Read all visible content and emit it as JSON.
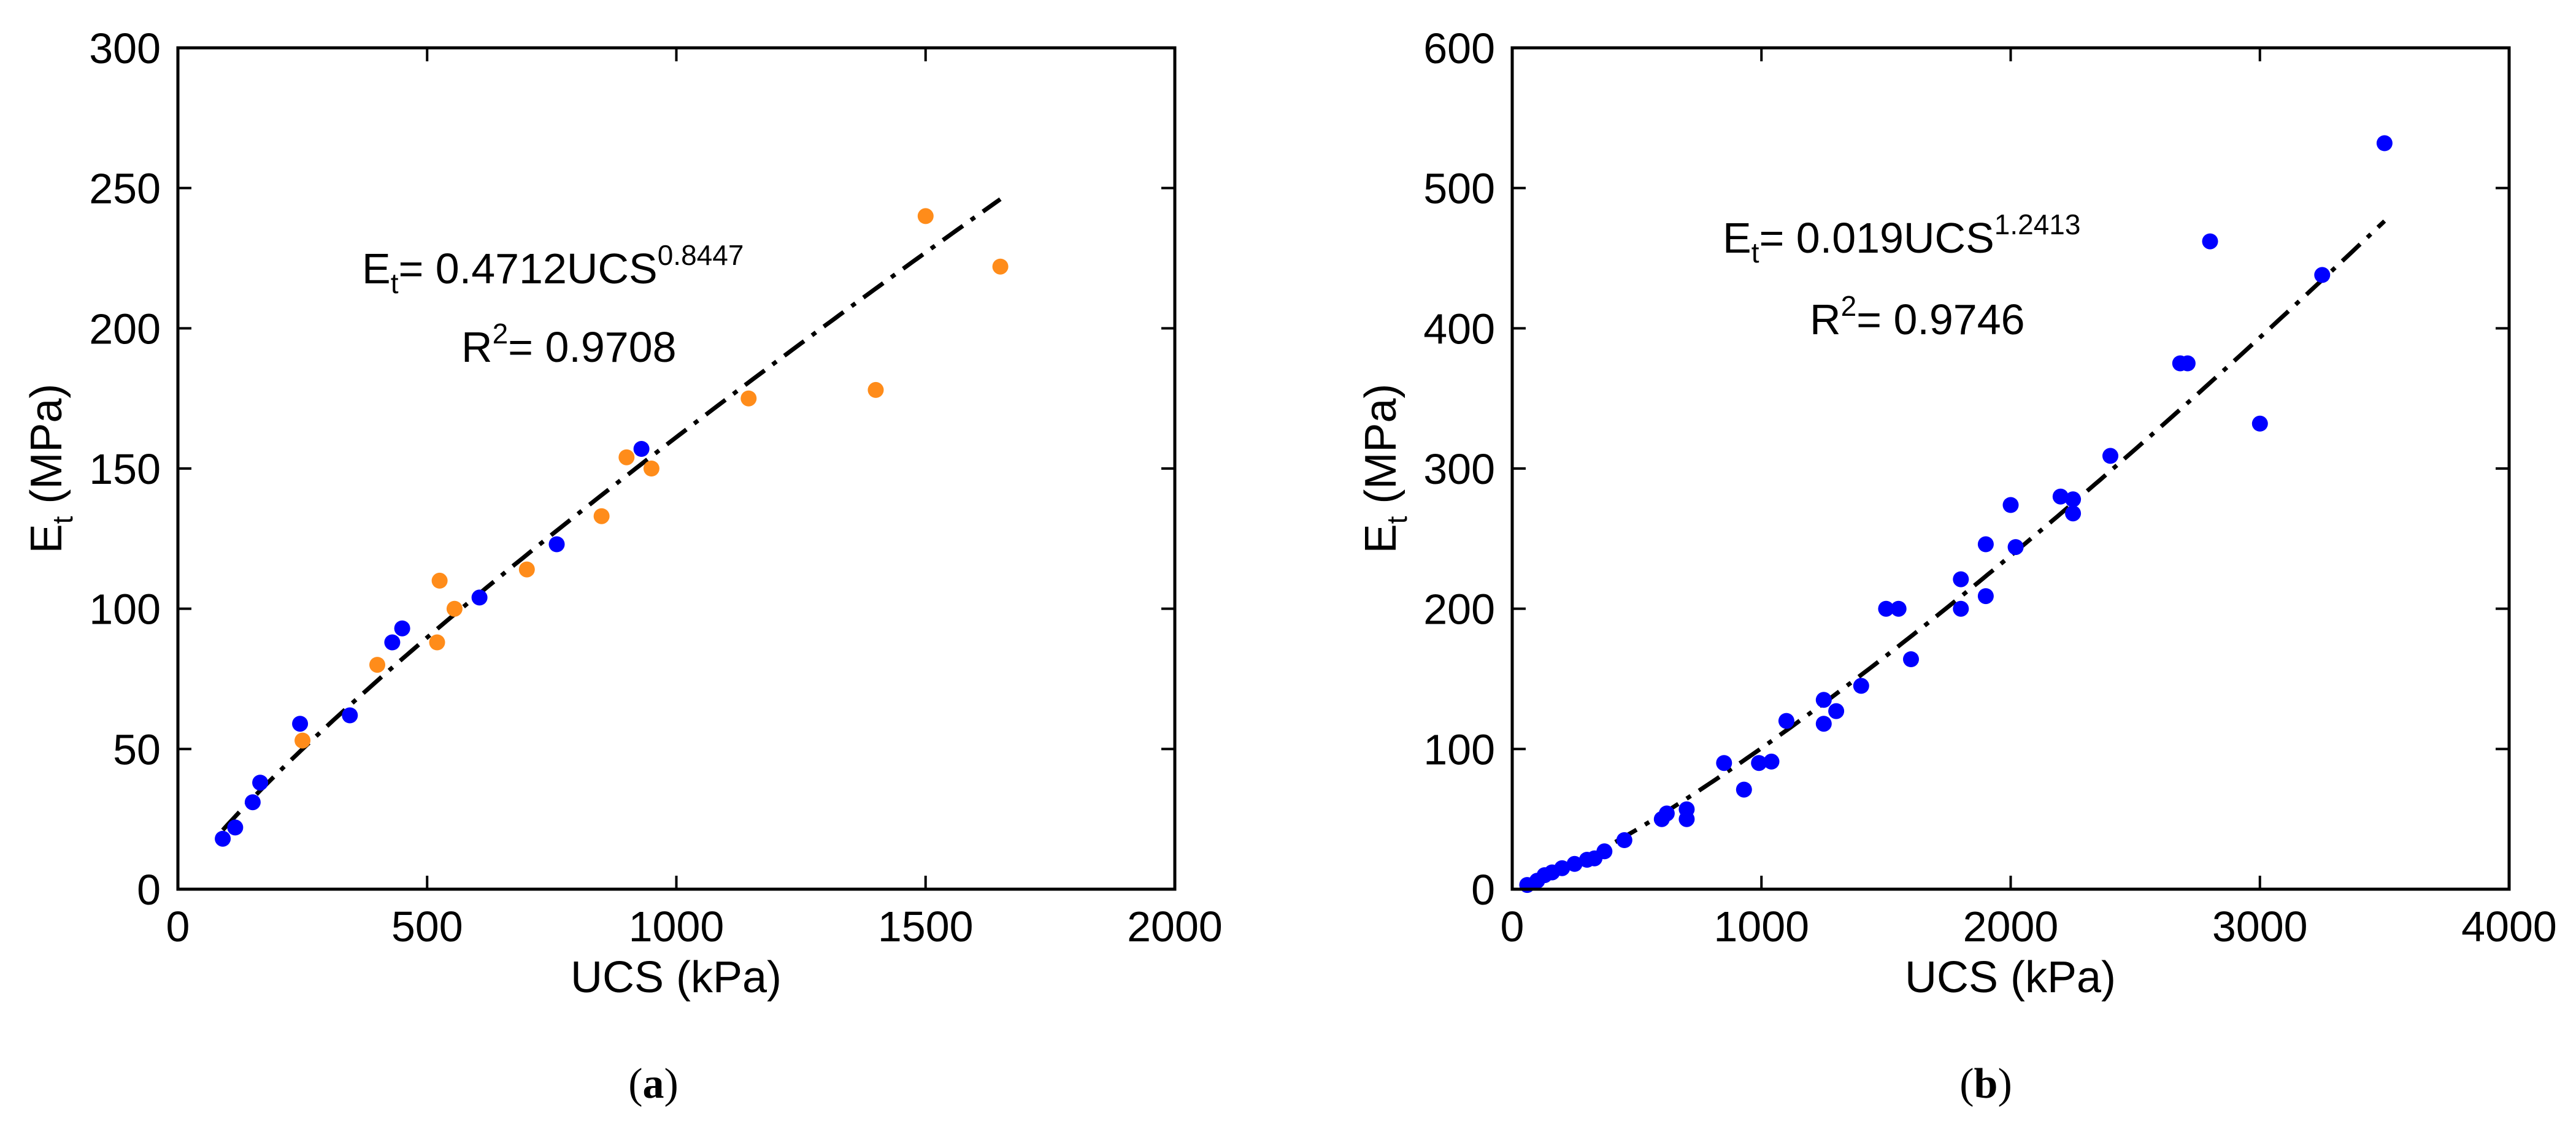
{
  "chart_data": [
    {
      "type": "scatter",
      "panel": "a",
      "caption_open": "(",
      "caption_letter": "a",
      "caption_close": ")",
      "xlabel": "UCS (kPa)",
      "ylabel": {
        "main": "E",
        "sub": "t",
        "rest": " (MPa)"
      },
      "xlim": [
        0,
        2000
      ],
      "ylim": [
        0,
        300
      ],
      "xticks": [
        0,
        500,
        1000,
        1500,
        2000
      ],
      "yticks": [
        0,
        50,
        100,
        150,
        200,
        250,
        300
      ],
      "grid": false,
      "series": [
        {
          "name": "blue",
          "color": "#0000ff",
          "points": [
            [
              90,
              18
            ],
            [
              115,
              22
            ],
            [
              150,
              31
            ],
            [
              165,
              38
            ],
            [
              245,
              59
            ],
            [
              345,
              62
            ],
            [
              430,
              88
            ],
            [
              450,
              93
            ],
            [
              605,
              104
            ],
            [
              760,
              123
            ],
            [
              930,
              157
            ]
          ]
        },
        {
          "name": "orange",
          "color": "#ff8c1a",
          "points": [
            [
              250,
              53
            ],
            [
              400,
              80
            ],
            [
              520,
              88
            ],
            [
              525,
              110
            ],
            [
              555,
              100
            ],
            [
              700,
              114
            ],
            [
              850,
              133
            ],
            [
              900,
              154
            ],
            [
              950,
              150
            ],
            [
              1145,
              175
            ],
            [
              1400,
              178
            ],
            [
              1500,
              240
            ],
            [
              1650,
              222
            ]
          ]
        }
      ],
      "fit": {
        "coef": 0.4712,
        "exponent": 0.8447,
        "x_range": [
          90,
          1650
        ],
        "color": "#000000",
        "style": "dash-dot",
        "eq_lhs": "E",
        "eq_lhs_sub": "t",
        "eq_rhs": "= 0.4712UCS",
        "eq_sup": "0.8447",
        "r2_lhs": "R",
        "r2_sup": "2",
        "r2_rhs": "= 0.9708"
      }
    },
    {
      "type": "scatter",
      "panel": "b",
      "caption_open": "(",
      "caption_letter": "b",
      "caption_close": ")",
      "xlabel": "UCS (kPa)",
      "ylabel": {
        "main": "E",
        "sub": "t",
        "rest": " (MPa)"
      },
      "xlim": [
        0,
        4000
      ],
      "ylim": [
        0,
        600
      ],
      "xticks": [
        0,
        1000,
        2000,
        3000,
        4000
      ],
      "yticks": [
        0,
        100,
        200,
        300,
        400,
        500,
        600
      ],
      "grid": false,
      "series": [
        {
          "name": "blue",
          "color": "#0000ff",
          "points": [
            [
              60,
              3
            ],
            [
              100,
              6
            ],
            [
              130,
              10
            ],
            [
              160,
              12
            ],
            [
              200,
              15
            ],
            [
              250,
              18
            ],
            [
              300,
              21
            ],
            [
              330,
              22
            ],
            [
              370,
              27
            ],
            [
              450,
              35
            ],
            [
              600,
              50
            ],
            [
              620,
              54
            ],
            [
              700,
              50
            ],
            [
              700,
              57
            ],
            [
              850,
              90
            ],
            [
              930,
              71
            ],
            [
              990,
              90
            ],
            [
              1040,
              91
            ],
            [
              1100,
              120
            ],
            [
              1250,
              118
            ],
            [
              1250,
              135
            ],
            [
              1300,
              127
            ],
            [
              1400,
              145
            ],
            [
              1500,
              200
            ],
            [
              1550,
              200
            ],
            [
              1600,
              164
            ],
            [
              1800,
              200
            ],
            [
              1800,
              221
            ],
            [
              1900,
              209
            ],
            [
              1900,
              246
            ],
            [
              2000,
              274
            ],
            [
              2020,
              244
            ],
            [
              2200,
              280
            ],
            [
              2250,
              268
            ],
            [
              2250,
              278
            ],
            [
              2400,
              309
            ],
            [
              2680,
              375
            ],
            [
              2710,
              375
            ],
            [
              2800,
              462
            ],
            [
              3000,
              332
            ],
            [
              3250,
              438
            ],
            [
              3500,
              532
            ]
          ]
        }
      ],
      "fit": {
        "coef": 0.019,
        "exponent": 1.2413,
        "x_range": [
          60,
          3500
        ],
        "color": "#000000",
        "style": "dash-dot",
        "eq_lhs": "E",
        "eq_lhs_sub": "t",
        "eq_rhs": "= 0.019UCS",
        "eq_sup": "1.2413",
        "r2_lhs": "R",
        "r2_sup": "2",
        "r2_rhs": "= 0.9746"
      }
    }
  ]
}
